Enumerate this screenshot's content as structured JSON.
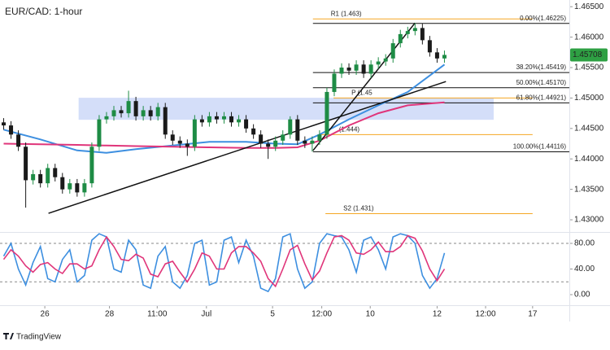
{
  "chart_data": [
    {
      "type": "candlestick",
      "title": "EUR/CAD: 1-hour",
      "x": [
        0,
        1,
        2,
        3,
        4,
        5,
        6,
        7,
        8,
        9,
        10,
        11,
        12,
        13,
        14,
        15,
        16,
        17,
        18,
        19,
        20,
        21,
        22,
        23,
        24,
        25,
        26,
        27,
        28,
        29,
        30,
        31,
        32,
        33,
        34,
        35,
        36,
        37,
        38,
        39,
        40,
        41,
        42,
        43,
        44,
        45,
        46,
        47,
        48,
        49,
        50,
        51,
        52,
        53,
        54,
        55,
        56,
        57,
        58,
        59,
        60
      ],
      "candles": [
        [
          1.446,
          1.4467,
          1.4448,
          1.4455
        ],
        [
          1.4455,
          1.4462,
          1.4433,
          1.444
        ],
        [
          1.444,
          1.4447,
          1.4413,
          1.442
        ],
        [
          1.442,
          1.4427,
          1.432,
          1.4365
        ],
        [
          1.4365,
          1.4382,
          1.4358,
          1.4375
        ],
        [
          1.4375,
          1.4382,
          1.4353,
          1.436
        ],
        [
          1.436,
          1.4392,
          1.4353,
          1.4385
        ],
        [
          1.4385,
          1.4392,
          1.4363,
          1.437
        ],
        [
          1.437,
          1.4377,
          1.4343,
          1.435
        ],
        [
          1.435,
          1.4367,
          1.4343,
          1.436
        ],
        [
          1.436,
          1.4367,
          1.4338,
          1.4345
        ],
        [
          1.4345,
          1.4367,
          1.4338,
          1.436
        ],
        [
          1.436,
          1.4427,
          1.4353,
          1.442
        ],
        [
          1.442,
          1.4472,
          1.4413,
          1.4465
        ],
        [
          1.4465,
          1.4477,
          1.4458,
          1.447
        ],
        [
          1.447,
          1.4487,
          1.4463,
          1.448
        ],
        [
          1.448,
          1.4487,
          1.4468,
          1.4475
        ],
        [
          1.4475,
          1.4512,
          1.4468,
          1.4495
        ],
        [
          1.4495,
          1.4502,
          1.4463,
          1.447
        ],
        [
          1.447,
          1.4487,
          1.4463,
          1.448
        ],
        [
          1.448,
          1.4487,
          1.4463,
          1.447
        ],
        [
          1.447,
          1.4492,
          1.4463,
          1.4485
        ],
        [
          1.4485,
          1.4492,
          1.4433,
          1.444
        ],
        [
          1.444,
          1.4447,
          1.4423,
          1.443
        ],
        [
          1.443,
          1.4437,
          1.4418,
          1.4425
        ],
        [
          1.4425,
          1.4432,
          1.4405,
          1.442
        ],
        [
          1.442,
          1.4472,
          1.4413,
          1.4465
        ],
        [
          1.4465,
          1.4472,
          1.4453,
          1.446
        ],
        [
          1.446,
          1.4477,
          1.4453,
          1.447
        ],
        [
          1.447,
          1.4477,
          1.4458,
          1.4465
        ],
        [
          1.4465,
          1.4477,
          1.4458,
          1.447
        ],
        [
          1.447,
          1.4477,
          1.4453,
          1.446
        ],
        [
          1.446,
          1.4472,
          1.4453,
          1.4465
        ],
        [
          1.4465,
          1.4472,
          1.4443,
          1.445
        ],
        [
          1.445,
          1.4457,
          1.4433,
          1.444
        ],
        [
          1.444,
          1.4447,
          1.4418,
          1.4425
        ],
        [
          1.4425,
          1.4432,
          1.44,
          1.442
        ],
        [
          1.442,
          1.4437,
          1.4413,
          1.443
        ],
        [
          1.443,
          1.4447,
          1.4423,
          1.444
        ],
        [
          1.444,
          1.447,
          1.4433,
          1.4465
        ],
        [
          1.4465,
          1.4472,
          1.4423,
          1.443
        ],
        [
          1.443,
          1.4437,
          1.4418,
          1.4425
        ],
        [
          1.4425,
          1.4437,
          1.4412,
          1.443
        ],
        [
          1.443,
          1.4447,
          1.4423,
          1.444
        ],
        [
          1.444,
          1.4517,
          1.4433,
          1.451
        ],
        [
          1.451,
          1.4547,
          1.4503,
          1.454
        ],
        [
          1.454,
          1.4557,
          1.4533,
          1.455
        ],
        [
          1.455,
          1.4557,
          1.4538,
          1.4545
        ],
        [
          1.4545,
          1.4562,
          1.4538,
          1.4555
        ],
        [
          1.4555,
          1.4562,
          1.4533,
          1.454
        ],
        [
          1.454,
          1.4562,
          1.4533,
          1.4555
        ],
        [
          1.4555,
          1.4567,
          1.4548,
          1.456
        ],
        [
          1.456,
          1.4572,
          1.4553,
          1.4565
        ],
        [
          1.4565,
          1.4597,
          1.4558,
          1.459
        ],
        [
          1.459,
          1.4612,
          1.4583,
          1.4605
        ],
        [
          1.4605,
          1.4617,
          1.4598,
          1.461
        ],
        [
          1.461,
          1.4623,
          1.4603,
          1.4615
        ],
        [
          1.4615,
          1.4622,
          1.4588,
          1.4595
        ],
        [
          1.4595,
          1.4602,
          1.4568,
          1.4575
        ],
        [
          1.4575,
          1.4582,
          1.4558,
          1.4565
        ],
        [
          1.4565,
          1.4578,
          1.4558,
          1.45708
        ]
      ],
      "up_color": "#1e8c45",
      "down_color": "#1a1a1a",
      "last_price_color": "#2ea043",
      "xlim": [
        -0.5,
        77
      ],
      "ylim": [
        1.428,
        1.4661
      ],
      "yticks": [
        {
          "value": 1.43,
          "label": "1.43000"
        },
        {
          "value": 1.435,
          "label": "1.43500"
        },
        {
          "value": 1.44,
          "label": "1.44000"
        },
        {
          "value": 1.445,
          "label": "1.44500"
        },
        {
          "value": 1.45,
          "label": "1.45000"
        },
        {
          "value": 1.455,
          "label": "1.45500"
        },
        {
          "value": 1.46,
          "label": "1.46000"
        },
        {
          "value": 1.465,
          "label": "1.46500"
        }
      ],
      "series": [
        {
          "color": "#3d8fe0",
          "x": [
            0,
            5,
            10,
            14,
            18,
            23,
            28,
            33,
            37,
            40,
            43,
            47,
            51,
            55,
            60
          ],
          "values": [
            1.4448,
            1.4432,
            1.4414,
            1.441,
            1.4416,
            1.4422,
            1.4428,
            1.4428,
            1.4425,
            1.4424,
            1.444,
            1.4465,
            1.4488,
            1.451,
            1.4555
          ]
        },
        {
          "color": "#e0357a",
          "x": [
            0,
            5,
            10,
            14,
            18,
            23,
            28,
            33,
            37,
            40,
            43,
            47,
            51,
            55,
            60
          ],
          "values": [
            1.4425,
            1.4424,
            1.4423,
            1.4422,
            1.4421,
            1.442,
            1.4419,
            1.4418,
            1.4418,
            1.4419,
            1.443,
            1.4455,
            1.4475,
            1.4488,
            1.4493
          ]
        }
      ],
      "trendlines": [
        {
          "x": [
            6.1,
            60.2
          ],
          "y": [
            1.43107,
            1.45271
          ],
          "color": "#111111"
        },
        {
          "x": [
            42.1,
            56
          ],
          "y": [
            1.44136,
            1.46233
          ],
          "color": "#111111"
        }
      ],
      "zone": {
        "x": [
          10.2,
          66.7
        ],
        "y": [
          1.44643,
          1.45004
        ],
        "color": "#c9d6f7"
      },
      "fib_levels": [
        {
          "label": "0.00%(1.46225)",
          "value": 1.46225,
          "x": [
            42.1,
            77
          ],
          "color": "#111111"
        },
        {
          "label": "38.20%(1.45419)",
          "value": 1.45419,
          "x": [
            42.1,
            77
          ],
          "color": "#111111"
        },
        {
          "label": "50.00%(1.45170)",
          "value": 1.4517,
          "x": [
            42.1,
            77
          ],
          "color": "#111111"
        },
        {
          "label": "61.80%(1.44921)",
          "value": 1.44921,
          "x": [
            42.1,
            77
          ],
          "color": "#111111"
        },
        {
          "label": "100.00%(1.44116)",
          "value": 1.44116,
          "x": [
            42.1,
            77
          ],
          "color": "#111111"
        }
      ],
      "pivot_levels": [
        {
          "label": "R1 (1.463)",
          "value": 1.463,
          "x": [
            42.1,
            72
          ],
          "color": "#f5a623"
        },
        {
          "label": "P (1.45",
          "value": 1.45,
          "x": [
            44.9,
            72
          ],
          "color": "#f5a623"
        },
        {
          "label": "(1.444)",
          "value": 1.444,
          "x": [
            43.2,
            72
          ],
          "color": "#f5a623"
        },
        {
          "label": "S2 (1.431)",
          "value": 1.431,
          "x": [
            43.8,
            72
          ],
          "color": "#f5a623"
        }
      ]
    },
    {
      "type": "line",
      "x": [
        0,
        1,
        2,
        3,
        4,
        5,
        6,
        7,
        8,
        9,
        10,
        11,
        12,
        13,
        14,
        15,
        16,
        17,
        18,
        19,
        20,
        21,
        22,
        23,
        24,
        25,
        26,
        27,
        28,
        29,
        30,
        31,
        32,
        33,
        34,
        35,
        36,
        37,
        38,
        39,
        40,
        41,
        42,
        43,
        44,
        45,
        46,
        47,
        48,
        49,
        50,
        51,
        52,
        53,
        54,
        55,
        56,
        57,
        58,
        59,
        60
      ],
      "series": [
        {
          "color": "#3d8fe0",
          "values": [
            60,
            80,
            40,
            15,
            50,
            75,
            25,
            20,
            55,
            70,
            20,
            30,
            85,
            95,
            90,
            40,
            35,
            85,
            70,
            15,
            10,
            60,
            75,
            20,
            10,
            30,
            80,
            85,
            15,
            20,
            85,
            90,
            50,
            85,
            60,
            10,
            5,
            25,
            90,
            95,
            40,
            10,
            20,
            80,
            95,
            92,
            90,
            70,
            35,
            85,
            90,
            70,
            40,
            90,
            95,
            92,
            80,
            30,
            10,
            25,
            65
          ]
        },
        {
          "color": "#e0357a",
          "values": [
            55,
            70,
            60,
            45,
            35,
            47,
            50,
            40,
            33,
            48,
            48,
            40,
            45,
            70,
            90,
            75,
            55,
            53,
            63,
            57,
            32,
            28,
            48,
            52,
            35,
            20,
            40,
            65,
            60,
            40,
            40,
            65,
            75,
            75,
            65,
            52,
            25,
            13,
            40,
            70,
            77,
            48,
            23,
            37,
            65,
            90,
            92,
            85,
            65,
            63,
            70,
            82,
            67,
            67,
            75,
            92,
            88,
            68,
            40,
            22,
            40
          ]
        }
      ],
      "xlim": [
        -0.5,
        77
      ],
      "ylim": [
        -16.5,
        96.5
      ],
      "yticks": [
        {
          "value": 0,
          "label": "0.00"
        },
        {
          "value": 40,
          "label": "40.00"
        },
        {
          "value": 80,
          "label": "80.00"
        }
      ],
      "bands": [
        80,
        20
      ],
      "xticks": [
        {
          "value": 5.6,
          "label": "26"
        },
        {
          "value": 14.4,
          "label": "28"
        },
        {
          "value": 20.9,
          "label": "11:00"
        },
        {
          "value": 27.6,
          "label": "Jul"
        },
        {
          "value": 36.6,
          "label": "5"
        },
        {
          "value": 43.3,
          "label": "12:00"
        },
        {
          "value": 49.9,
          "label": "10"
        },
        {
          "value": 59,
          "label": "12"
        },
        {
          "value": 65.6,
          "label": "12:00"
        },
        {
          "value": 72,
          "label": "17"
        }
      ]
    }
  ],
  "footer": {
    "brand": "TradingView"
  }
}
